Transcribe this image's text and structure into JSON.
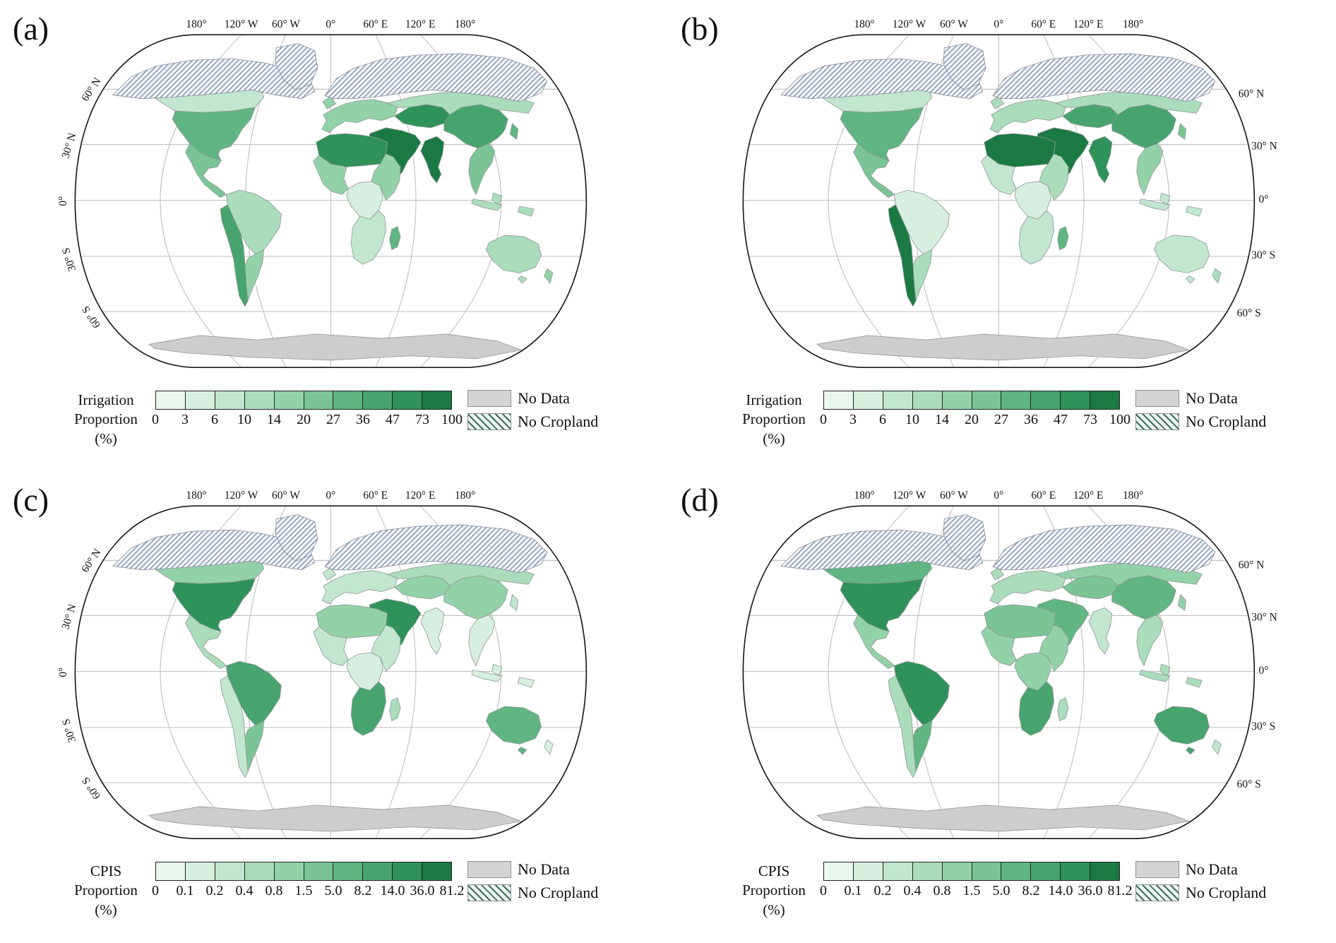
{
  "axis": {
    "lon_labels": [
      "180°",
      "120° W",
      "60° W",
      "0°",
      "60° E",
      "120° E",
      "180°"
    ],
    "lat_labels": [
      "60° N",
      "30° N",
      "0°",
      "30° S",
      "60° S"
    ]
  },
  "colors": {
    "scale": [
      "#e9f7ee",
      "#d7efe0",
      "#c2e6cf",
      "#abdcbc",
      "#93d1a9",
      "#7ac496",
      "#60b583",
      "#47a46f",
      "#2f925a",
      "#1b7a44"
    ],
    "no_data": "#d4d4d4",
    "antarctica": "#cdcdcd",
    "ocean": "#ffffff",
    "graticule": "#bcbcbc",
    "region_border": "#8f9a93",
    "outline": "#1a1a1a",
    "hatch_line": "#7c8fae",
    "hatch_bg": "#f4f6fa",
    "hatch_border": "#8a8f98",
    "legend_hatch_line": "#3e6f5e",
    "legend_hatch_bg": "#eef5f0"
  },
  "legend": {
    "no_data_label": "No Data",
    "no_cropland_label": "No Cropland"
  },
  "panels": [
    {
      "id": "a",
      "label": "(a)",
      "legend_title": [
        "Irrigation",
        "Proportion",
        "(%)"
      ],
      "lat_side": "left",
      "ticks": [
        "0",
        "3",
        "6",
        "10",
        "14",
        "20",
        "27",
        "36",
        "47",
        "73",
        "100"
      ],
      "regions": {
        "canada": 2,
        "usa": 6,
        "mexico": 5,
        "sa_north": 3,
        "sa_west": 7,
        "sa_south": 4,
        "europe": 4,
        "russia": 3,
        "c_asia": 8,
        "mid_east": 9,
        "n_africa": 8,
        "w_africa": 4,
        "c_africa": 1,
        "e_africa": 4,
        "s_africa": 2,
        "madagascar": 6,
        "s_asia": 9,
        "e_asia": 7,
        "se_asia": 5,
        "indonesia": 3,
        "japan": 6,
        "australia": 3,
        "nz": 4
      }
    },
    {
      "id": "b",
      "label": "(b)",
      "legend_title": [
        "Irrigation",
        "Proportion",
        "(%)"
      ],
      "lat_side": "right",
      "ticks": [
        "0",
        "3",
        "6",
        "10",
        "14",
        "20",
        "27",
        "36",
        "47",
        "73",
        "100"
      ],
      "regions": {
        "canada": 2,
        "usa": 6,
        "mexico": 5,
        "sa_north": 1,
        "sa_west": 9,
        "sa_south": 3,
        "europe": 3,
        "russia": 3,
        "c_asia": 7,
        "mid_east": 9,
        "n_africa": 9,
        "w_africa": 2,
        "c_africa": 1,
        "e_africa": 3,
        "s_africa": 2,
        "madagascar": 6,
        "s_asia": 8,
        "e_asia": 7,
        "se_asia": 4,
        "indonesia": 2,
        "japan": 5,
        "australia": 2,
        "nz": 3
      }
    },
    {
      "id": "c",
      "label": "(c)",
      "legend_title": [
        "CPIS",
        "Proportion",
        "(%)"
      ],
      "lat_side": "left",
      "ticks": [
        "0",
        "0.1",
        "0.2",
        "0.4",
        "0.8",
        "1.5",
        "5.0",
        "8.2",
        "14.0",
        "36.0",
        "81.2"
      ],
      "regions": {
        "canada": 4,
        "usa": 8,
        "mexico": 3,
        "sa_north": 7,
        "sa_west": 2,
        "sa_south": 5,
        "europe": 2,
        "russia": 3,
        "c_asia": 4,
        "mid_east": 8,
        "n_africa": 4,
        "w_africa": 2,
        "c_africa": 1,
        "e_africa": 2,
        "s_africa": 7,
        "madagascar": 3,
        "s_asia": 1,
        "e_asia": 4,
        "se_asia": 1,
        "indonesia": 1,
        "japan": 2,
        "australia": 6,
        "nz": 1
      }
    },
    {
      "id": "d",
      "label": "(d)",
      "legend_title": [
        "CPIS",
        "Proportion",
        "(%)"
      ],
      "lat_side": "right",
      "ticks": [
        "0",
        "0.1",
        "0.2",
        "0.4",
        "0.8",
        "1.5",
        "5.0",
        "8.2",
        "14.0",
        "36.0",
        "81.2"
      ],
      "regions": {
        "canada": 6,
        "usa": 8,
        "mexico": 4,
        "sa_north": 8,
        "sa_west": 3,
        "sa_south": 6,
        "europe": 3,
        "russia": 4,
        "c_asia": 5,
        "mid_east": 6,
        "n_africa": 5,
        "w_africa": 4,
        "c_africa": 4,
        "e_africa": 4,
        "s_africa": 7,
        "madagascar": 3,
        "s_asia": 2,
        "e_asia": 6,
        "se_asia": 3,
        "indonesia": 3,
        "japan": 4,
        "australia": 7,
        "nz": 2
      }
    }
  ]
}
